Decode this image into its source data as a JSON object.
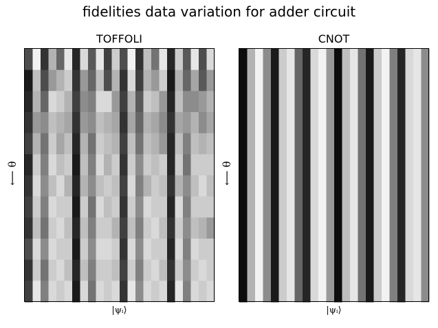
{
  "title": "fidelities data variation for adder circuit",
  "chart_data": [
    {
      "type": "heatmap",
      "title": "TOFFOLI",
      "xlabel": "|ψᵢ⟩",
      "ylabel": "⟵ θ",
      "colormap": "gray",
      "grid": false,
      "rows": 12,
      "cols": 24,
      "values": [
        [
          0.3,
          0.95,
          0.2,
          0.7,
          0.4,
          0.9,
          0.15,
          0.85,
          0.35,
          0.9,
          0.25,
          0.8,
          0.3,
          0.95,
          0.2,
          0.75,
          0.45,
          0.9,
          0.15,
          0.8,
          0.35,
          0.9,
          0.3,
          0.85
        ],
        [
          0.1,
          0.75,
          0.3,
          0.6,
          0.7,
          0.8,
          0.2,
          0.6,
          0.4,
          0.75,
          0.3,
          0.7,
          0.2,
          0.85,
          0.25,
          0.7,
          0.6,
          0.8,
          0.1,
          0.7,
          0.4,
          0.65,
          0.35,
          0.6
        ],
        [
          0.15,
          0.7,
          0.4,
          0.85,
          0.8,
          0.7,
          0.25,
          0.55,
          0.5,
          0.85,
          0.85,
          0.6,
          0.25,
          0.7,
          0.35,
          0.8,
          0.75,
          0.6,
          0.15,
          0.75,
          0.55,
          0.55,
          0.6,
          0.7
        ],
        [
          0.2,
          0.6,
          0.55,
          0.75,
          0.7,
          0.65,
          0.2,
          0.6,
          0.55,
          0.75,
          0.7,
          0.65,
          0.2,
          0.65,
          0.4,
          0.7,
          0.65,
          0.55,
          0.2,
          0.65,
          0.6,
          0.7,
          0.55,
          0.65
        ],
        [
          0.25,
          0.7,
          0.45,
          0.8,
          0.65,
          0.75,
          0.15,
          0.7,
          0.45,
          0.8,
          0.75,
          0.7,
          0.25,
          0.75,
          0.45,
          0.75,
          0.7,
          0.6,
          0.15,
          0.75,
          0.5,
          0.75,
          0.7,
          0.75
        ],
        [
          0.15,
          0.8,
          0.5,
          0.85,
          0.75,
          0.8,
          0.1,
          0.75,
          0.5,
          0.85,
          0.7,
          0.8,
          0.2,
          0.8,
          0.55,
          0.8,
          0.75,
          0.8,
          0.15,
          0.8,
          0.45,
          0.8,
          0.8,
          0.8
        ],
        [
          0.2,
          0.85,
          0.55,
          0.75,
          0.85,
          0.7,
          0.15,
          0.7,
          0.55,
          0.75,
          0.8,
          0.75,
          0.25,
          0.85,
          0.5,
          0.7,
          0.8,
          0.75,
          0.2,
          0.7,
          0.55,
          0.75,
          0.85,
          0.75
        ],
        [
          0.25,
          0.8,
          0.5,
          0.85,
          0.8,
          0.8,
          0.1,
          0.8,
          0.45,
          0.85,
          0.75,
          0.8,
          0.2,
          0.8,
          0.55,
          0.85,
          0.8,
          0.8,
          0.15,
          0.85,
          0.5,
          0.8,
          0.8,
          0.8
        ],
        [
          0.2,
          0.75,
          0.45,
          0.8,
          0.85,
          0.75,
          0.15,
          0.75,
          0.5,
          0.8,
          0.8,
          0.7,
          0.25,
          0.75,
          0.5,
          0.8,
          0.85,
          0.75,
          0.2,
          0.8,
          0.55,
          0.75,
          0.7,
          0.6
        ],
        [
          0.3,
          0.85,
          0.55,
          0.85,
          0.8,
          0.8,
          0.1,
          0.8,
          0.55,
          0.85,
          0.85,
          0.8,
          0.2,
          0.85,
          0.55,
          0.85,
          0.8,
          0.8,
          0.15,
          0.85,
          0.5,
          0.85,
          0.8,
          0.8
        ],
        [
          0.2,
          0.8,
          0.45,
          0.8,
          0.85,
          0.75,
          0.15,
          0.75,
          0.5,
          0.8,
          0.8,
          0.75,
          0.25,
          0.8,
          0.5,
          0.8,
          0.85,
          0.75,
          0.2,
          0.8,
          0.55,
          0.8,
          0.85,
          0.8
        ],
        [
          0.25,
          0.9,
          0.5,
          0.85,
          0.8,
          0.85,
          0.1,
          0.85,
          0.45,
          0.85,
          0.8,
          0.85,
          0.2,
          0.9,
          0.55,
          0.85,
          0.8,
          0.85,
          0.15,
          0.9,
          0.5,
          0.85,
          0.8,
          0.85
        ]
      ]
    },
    {
      "type": "heatmap",
      "title": "CNOT",
      "xlabel": "|ψᵢ⟩",
      "ylabel": "⟵ θ",
      "colormap": "gray",
      "grid": false,
      "rows": 1,
      "cols": 24,
      "values": [
        [
          0.05,
          0.7,
          0.95,
          0.55,
          0.1,
          0.8,
          0.9,
          0.4,
          0.15,
          0.85,
          0.95,
          0.6,
          0.05,
          0.75,
          0.9,
          0.45,
          0.1,
          0.8,
          0.95,
          0.5,
          0.15,
          0.85,
          0.9,
          0.55
        ]
      ]
    }
  ]
}
